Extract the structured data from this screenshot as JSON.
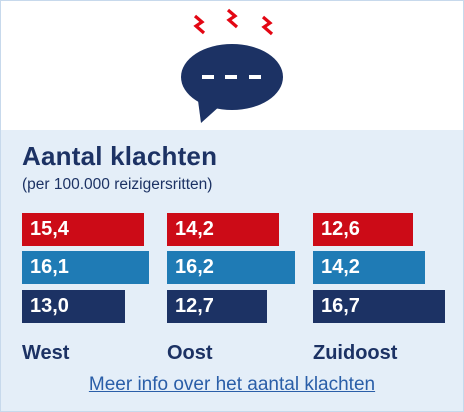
{
  "title": "Aantal klachten",
  "subtitle": "(per 100.000 reizigersritten)",
  "link_text": "Meer info over het aantal klachten",
  "colors": {
    "red": "#cc0b17",
    "light_blue": "#1f7bb5",
    "dark_blue": "#1c3264",
    "icon_bubble": "#1c3264",
    "icon_spark": "#e30613",
    "background": "#e4eef8"
  },
  "icon": "speech-bubble-icon",
  "chart_data": {
    "type": "bar",
    "orientation": "horizontal",
    "title": "Aantal klachten",
    "subtitle": "(per 100.000 reizigersritten)",
    "categories": [
      "West",
      "Oost",
      "Zuidoost"
    ],
    "series": [
      {
        "values": [
          15.4,
          14.2,
          12.6
        ],
        "labels": [
          "15,4",
          "14,2",
          "12,6"
        ],
        "color": "#cc0b17"
      },
      {
        "values": [
          16.1,
          16.2,
          14.2
        ],
        "labels": [
          "16,1",
          "16,2",
          "14,2"
        ],
        "color": "#1f7bb5"
      },
      {
        "values": [
          13.0,
          12.7,
          16.7
        ],
        "labels": [
          "13,0",
          "12,7",
          "16,7"
        ],
        "color": "#1c3264"
      }
    ],
    "xlim": [
      0,
      16.7
    ],
    "grid": false,
    "legend": "none"
  }
}
